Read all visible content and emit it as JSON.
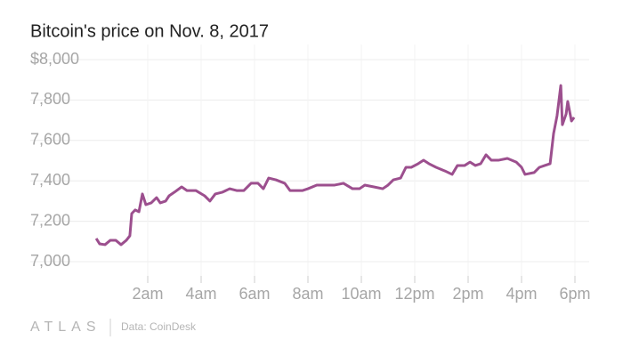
{
  "chart_data": {
    "type": "line",
    "title": "Bitcoin's price on Nov. 8, 2017",
    "brand": "ATLAS",
    "source": "Data: CoinDesk",
    "x": [
      0.07,
      0.2,
      0.4,
      0.6,
      0.8,
      1,
      1.2,
      1.33,
      1.4,
      1.53,
      1.67,
      1.8,
      1.93,
      2.13,
      2.33,
      2.47,
      2.67,
      2.8,
      3,
      3.27,
      3.47,
      3.8,
      4.13,
      4.33,
      4.53,
      4.8,
      5.07,
      5.33,
      5.6,
      5.87,
      6.13,
      6.33,
      6.53,
      6.8,
      7.13,
      7.33,
      7.6,
      7.8,
      8,
      8.33,
      8.67,
      9,
      9.33,
      9.67,
      9.93,
      10.13,
      10.47,
      10.8,
      11,
      11.2,
      11.47,
      11.67,
      11.87,
      12.13,
      12.33,
      12.53,
      12.8,
      13.13,
      13.4,
      13.6,
      13.87,
      14.07,
      14.27,
      14.47,
      14.67,
      14.87,
      15.13,
      15.47,
      15.8,
      16,
      16.13,
      16.47,
      16.67,
      16.87,
      17.07,
      17.2,
      17.33,
      17.47,
      17.53,
      17.67,
      17.73,
      17.87,
      17.97
    ],
    "series": [
      {
        "name": "Bitcoin price",
        "color": "#9c4f8e",
        "values": [
          7115,
          7088,
          7084,
          7106,
          7106,
          7084,
          7106,
          7128,
          7238,
          7256,
          7247,
          7335,
          7282,
          7291,
          7317,
          7291,
          7300,
          7326,
          7344,
          7370,
          7352,
          7352,
          7326,
          7300,
          7335,
          7344,
          7361,
          7352,
          7352,
          7388,
          7388,
          7361,
          7414,
          7405,
          7388,
          7352,
          7352,
          7352,
          7361,
          7379,
          7379,
          7379,
          7388,
          7361,
          7361,
          7379,
          7370,
          7361,
          7379,
          7405,
          7414,
          7467,
          7467,
          7485,
          7502,
          7485,
          7467,
          7449,
          7432,
          7476,
          7476,
          7493,
          7476,
          7485,
          7529,
          7502,
          7502,
          7511,
          7493,
          7467,
          7432,
          7441,
          7467,
          7476,
          7485,
          7634,
          7722,
          7872,
          7678,
          7731,
          7793,
          7696,
          7714
        ]
      }
    ],
    "xlim": [
      0,
      18
    ],
    "xticks": [
      {
        "value": 2,
        "label": "2am"
      },
      {
        "value": 4,
        "label": "4am"
      },
      {
        "value": 6,
        "label": "6am"
      },
      {
        "value": 8,
        "label": "8am"
      },
      {
        "value": 10,
        "label": "10am"
      },
      {
        "value": 12,
        "label": "12pm"
      },
      {
        "value": 14,
        "label": "2pm"
      },
      {
        "value": 16,
        "label": "4pm"
      },
      {
        "value": 18,
        "label": "6pm"
      }
    ],
    "ylim": [
      7000,
      8000
    ],
    "yticks": [
      {
        "value": 7000,
        "label": "7,000"
      },
      {
        "value": 7200,
        "label": "7,200"
      },
      {
        "value": 7400,
        "label": "7,400"
      },
      {
        "value": 7600,
        "label": "7,600"
      },
      {
        "value": 7800,
        "label": "7,800"
      },
      {
        "value": 8000,
        "label": "$8,000"
      }
    ],
    "grid": true
  }
}
